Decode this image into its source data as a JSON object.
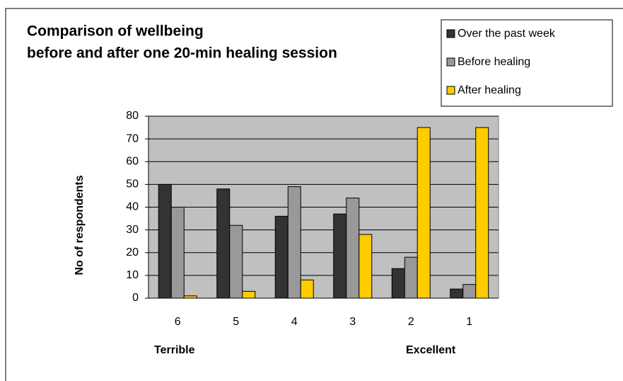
{
  "chart_data": {
    "type": "bar",
    "title": [
      "Comparison of wellbeing",
      "before and after one 20-min healing session"
    ],
    "y_label": "No of respondents",
    "annotations": [
      "Terrible",
      "Excellent"
    ],
    "categories": [
      "6",
      "5",
      "4",
      "3",
      "2",
      "1"
    ],
    "series": [
      {
        "name": "Over the past week",
        "color": "#333333",
        "values": [
          50,
          48,
          36,
          37,
          13,
          4
        ]
      },
      {
        "name": "Before healing",
        "color": "#999999",
        "values": [
          40,
          32,
          49,
          44,
          18,
          6
        ]
      },
      {
        "name": "After healing",
        "color": "#ffcc00",
        "values": [
          1,
          3,
          8,
          28,
          75,
          75
        ]
      }
    ],
    "ylim": [
      0,
      80
    ],
    "yticks": [
      0,
      10,
      20,
      30,
      40,
      50,
      60,
      70,
      80
    ],
    "grid": true,
    "legend": "top-right"
  }
}
